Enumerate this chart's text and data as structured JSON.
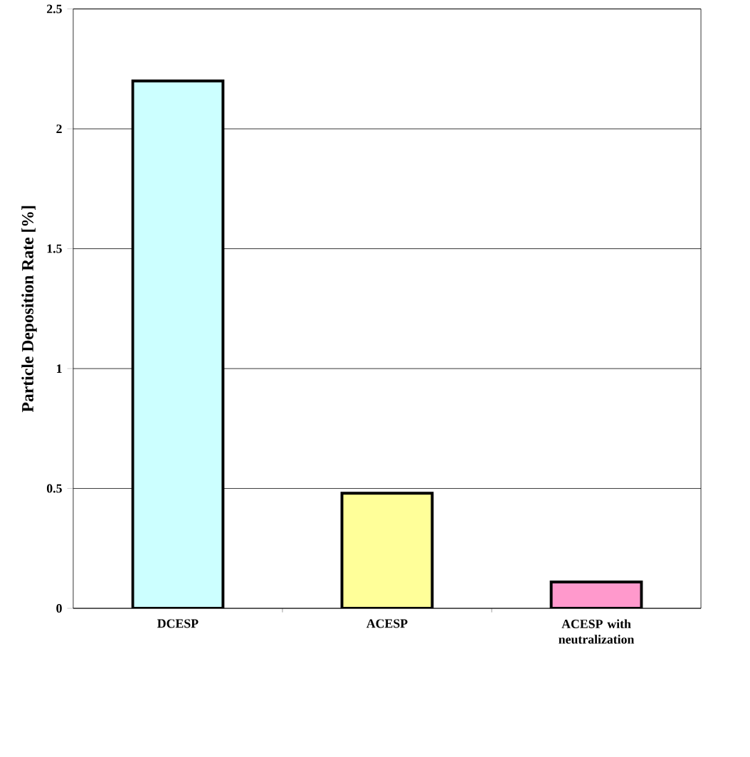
{
  "chart_data": {
    "type": "bar",
    "ylabel": "Particle Deposition Rate [%]",
    "categories": [
      "DCESP",
      "ACESP",
      "ACESP with neutralization"
    ],
    "values": [
      2.2,
      0.48,
      0.11
    ],
    "colors": [
      "#ccffff",
      "#ffff99",
      "#ff99cc"
    ],
    "ylim": [
      0,
      2.5
    ],
    "yticks": [
      0,
      0.5,
      1,
      1.5,
      2,
      2.5
    ],
    "grid": "y"
  }
}
